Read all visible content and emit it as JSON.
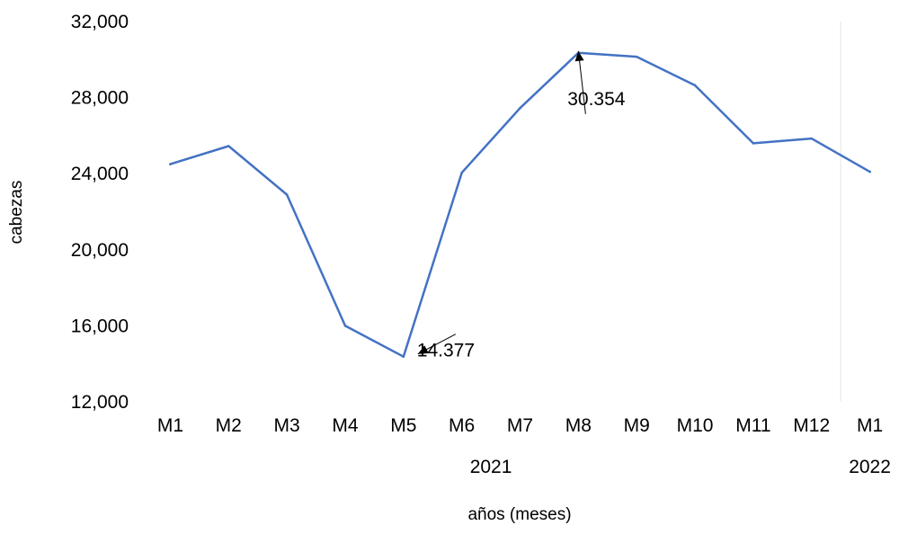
{
  "chart_data": {
    "type": "line",
    "title": "",
    "xlabel": "años (meses)",
    "ylabel": "cabezas",
    "categories": [
      "M1",
      "M2",
      "M3",
      "M4",
      "M5",
      "M6",
      "M7",
      "M8",
      "M9",
      "M10",
      "M11",
      "M12",
      "M1"
    ],
    "year_groups": [
      {
        "label": "2021",
        "categories": [
          "M1",
          "M2",
          "M3",
          "M4",
          "M5",
          "M6",
          "M7",
          "M8",
          "M9",
          "M10",
          "M11",
          "M12"
        ]
      },
      {
        "label": "2022",
        "categories": [
          "M1"
        ]
      }
    ],
    "series": [
      {
        "values": [
          24500,
          25450,
          22900,
          16000,
          14377,
          24050,
          27450,
          30354,
          30150,
          28650,
          25600,
          25850,
          24100
        ],
        "color": "#4472c4"
      }
    ],
    "ylim": [
      12000,
      32000
    ],
    "yticks": [
      12000,
      16000,
      20000,
      24000,
      28000,
      32000
    ],
    "ytick_labels": [
      "12,000",
      "16,000",
      "20,000",
      "24,000",
      "28,000",
      "32,000"
    ],
    "annotations": [
      {
        "text": "14.377",
        "category_index": 4,
        "value": 14377
      },
      {
        "text": "30.354",
        "category_index": 7,
        "value": 30354
      }
    ],
    "grid": false,
    "legend": "none",
    "year_separator_color": "#e6e6e6"
  }
}
